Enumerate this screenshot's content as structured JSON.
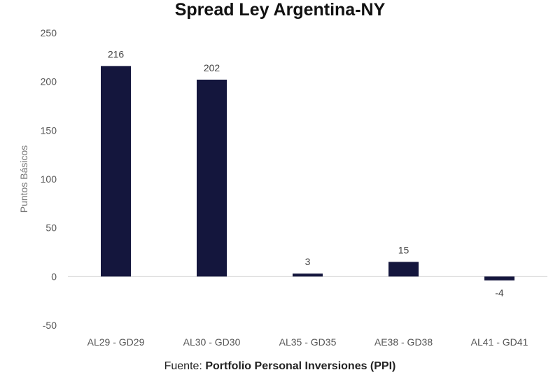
{
  "chart_data": {
    "type": "bar",
    "title": "Spread Ley Argentina-NY",
    "xlabel": "",
    "ylabel": "Puntos Básicos",
    "categories": [
      "AL29 - GD29",
      "AL30 - GD30",
      "AL35 - GD35",
      "AE38 - GD38",
      "AL41 - GD41"
    ],
    "values": [
      216,
      202,
      3,
      15,
      -4
    ],
    "data_labels": [
      "216",
      "202",
      "3",
      "15",
      "-4"
    ],
    "ylim": [
      -50,
      250
    ],
    "yticks": [
      -50,
      0,
      50,
      100,
      150,
      200,
      250
    ],
    "ytick_labels": [
      "-50",
      "0",
      "50",
      "100",
      "150",
      "200",
      "250"
    ],
    "grid": false,
    "bar_color": "#14163d",
    "source_prefix": "Fuente: ",
    "source_name": "Portfolio Personal Inversiones (PPI)"
  }
}
